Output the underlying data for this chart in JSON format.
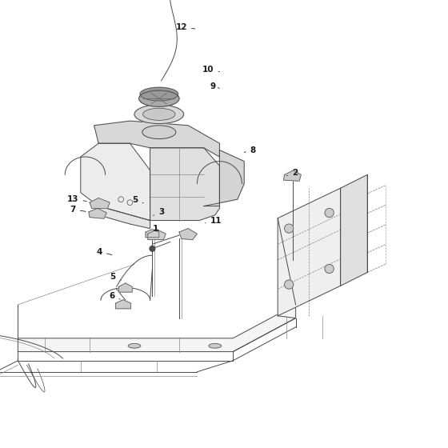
{
  "background_color": "#ffffff",
  "line_color": "#4a4a4a",
  "light_line_color": "#888888",
  "very_light_color": "#bbbbbb",
  "fill_light": "#e8e8e8",
  "fill_mid": "#d0d0d0",
  "fill_dark": "#b8b8b8",
  "label_color": "#1a1a1a",
  "label_fontsize": 7.5,
  "fig_width": 5.6,
  "fig_height": 5.6,
  "dpi": 100,
  "label_positions": {
    "12": [
      0.445,
      0.94,
      0.43,
      0.92,
      "right"
    ],
    "10": [
      0.53,
      0.845,
      0.51,
      0.838,
      "right"
    ],
    "9": [
      0.53,
      0.81,
      0.51,
      0.803,
      "right"
    ],
    "8": [
      0.57,
      0.67,
      0.555,
      0.66,
      "right"
    ],
    "13": [
      0.155,
      0.558,
      0.2,
      0.553,
      "left"
    ],
    "5a": [
      0.31,
      0.553,
      0.335,
      0.548,
      "left"
    ],
    "7": [
      0.155,
      0.536,
      0.195,
      0.528,
      "left"
    ],
    "3": [
      0.35,
      0.528,
      0.365,
      0.52,
      "left"
    ],
    "11": [
      0.49,
      0.512,
      0.465,
      0.505,
      "right"
    ],
    "2": [
      0.655,
      0.618,
      0.64,
      0.612,
      "right"
    ],
    "1": [
      0.345,
      0.49,
      0.36,
      0.482,
      "left"
    ],
    "4": [
      0.225,
      0.44,
      0.26,
      0.432,
      "left"
    ],
    "5b": [
      0.255,
      0.385,
      0.285,
      0.378,
      "left"
    ],
    "6": [
      0.255,
      0.345,
      0.285,
      0.337,
      "left"
    ]
  }
}
